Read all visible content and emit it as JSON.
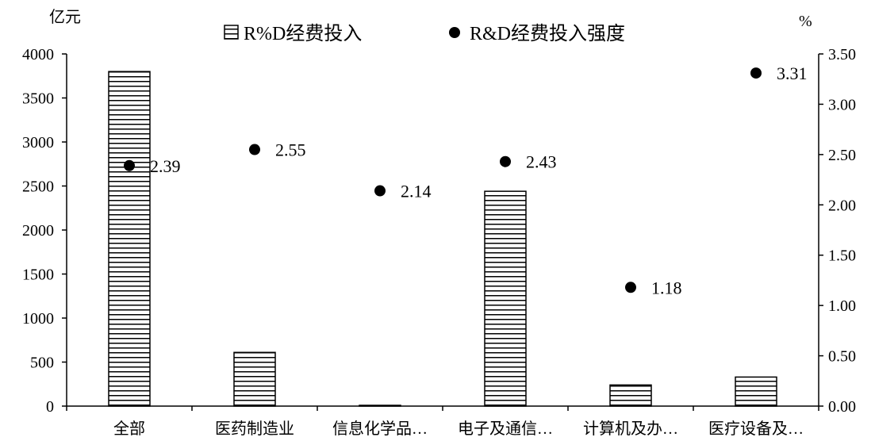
{
  "chart_data": {
    "type": "bar",
    "categories": [
      "全部",
      "医药制造业",
      "信息化学品…",
      "电子及通信…",
      "计算机及办…",
      "医疗设备及…"
    ],
    "series": [
      {
        "name": "R%D经费投入",
        "type": "bar",
        "axis": "left",
        "values": [
          3800,
          610,
          5,
          2440,
          240,
          330
        ]
      },
      {
        "name": "R&D经费投入强度",
        "type": "scatter",
        "axis": "right",
        "values": [
          2.39,
          2.55,
          2.14,
          2.43,
          1.18,
          3.31
        ],
        "data_labels": [
          "2.39",
          "2.55",
          "2.14",
          "2.43",
          "1.18",
          "3.31"
        ]
      }
    ],
    "y_left": {
      "unit": "亿元",
      "ylim": [
        0,
        4000
      ],
      "ticks": [
        "0",
        "500",
        "1000",
        "1500",
        "2000",
        "2500",
        "3000",
        "3500",
        "4000"
      ]
    },
    "y_right": {
      "unit": "%",
      "ylim": [
        0,
        3.5
      ],
      "ticks": [
        "0.00",
        "0.50",
        "1.00",
        "1.50",
        "2.00",
        "2.50",
        "3.00",
        "3.50"
      ]
    },
    "legend_position": "top-center",
    "grid": false
  }
}
